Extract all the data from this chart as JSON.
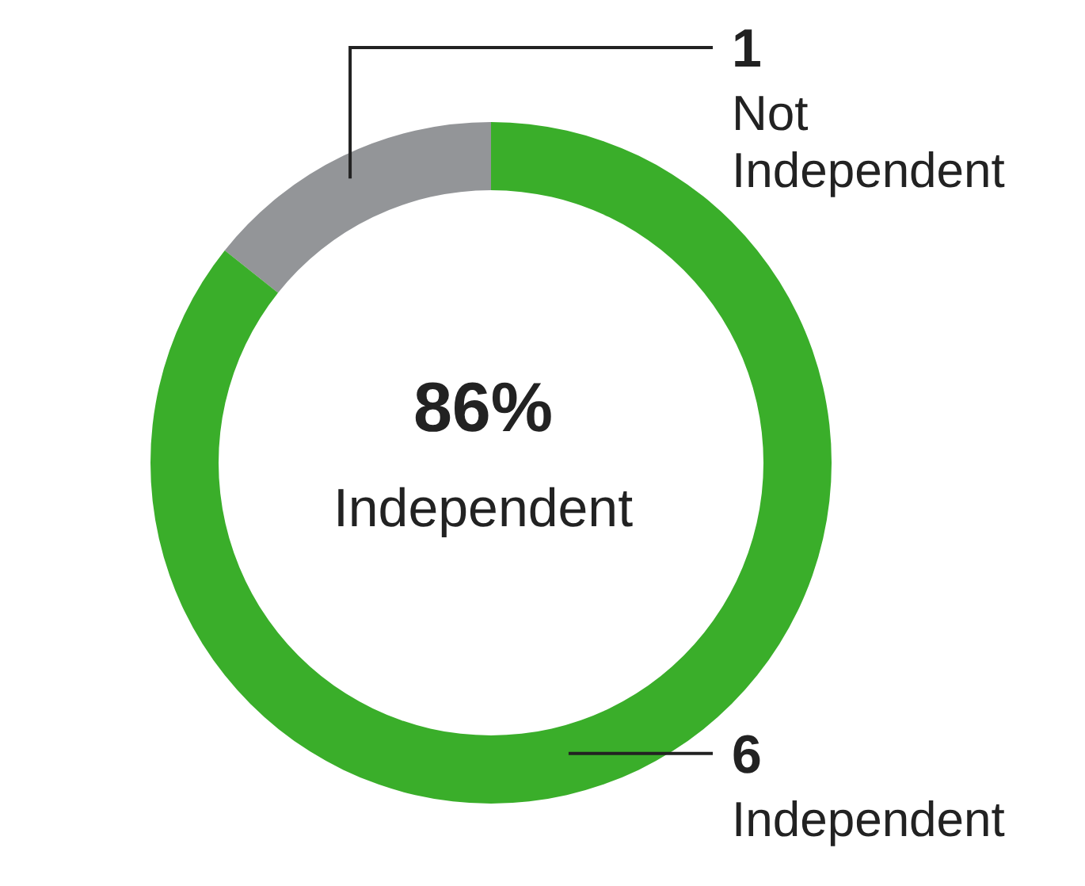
{
  "chart_data": {
    "type": "donut",
    "categories": [
      "Not Independent",
      "Independent"
    ],
    "values": [
      1,
      6
    ],
    "colors": [
      "#939598",
      "#3aae2a"
    ],
    "data_labels": true,
    "annotations": [
      "86%",
      "Independent"
    ]
  }
}
